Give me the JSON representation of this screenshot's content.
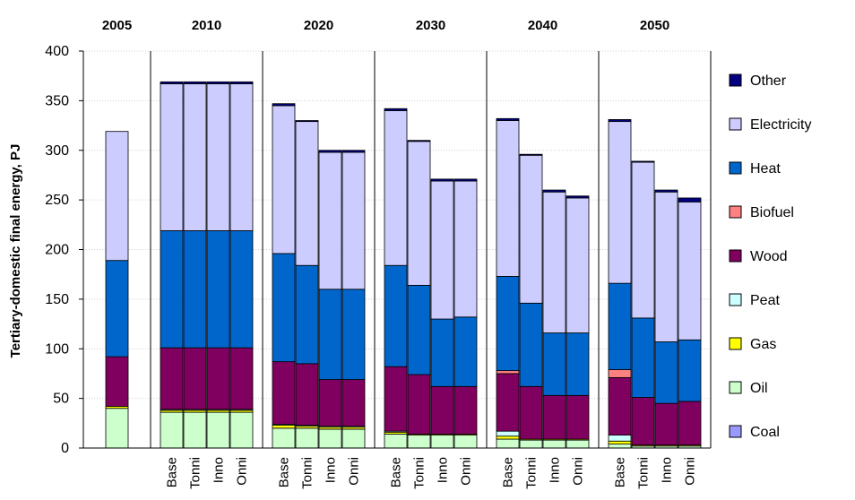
{
  "chart_data": {
    "type": "bar",
    "stacked": true,
    "ylabel": "Tertiary-domestic final energy, PJ",
    "ylim": [
      0,
      400
    ],
    "yticks": [
      0,
      50,
      100,
      150,
      200,
      250,
      300,
      350,
      400
    ],
    "grid": true,
    "legend_position": "right",
    "groups": [
      {
        "label": "2005",
        "bars": [
          ""
        ]
      },
      {
        "label": "2010",
        "bars": [
          "Base",
          "Tonni",
          "Inno",
          "Onni"
        ]
      },
      {
        "label": "2020",
        "bars": [
          "Base",
          "Tonni",
          "Inno",
          "Onni"
        ]
      },
      {
        "label": "2030",
        "bars": [
          "Base",
          "Tonni",
          "Inno",
          "Onni"
        ]
      },
      {
        "label": "2040",
        "bars": [
          "Base",
          "Tonni",
          "Inno",
          "Onni"
        ]
      },
      {
        "label": "2050",
        "bars": [
          "Base",
          "Tonni",
          "Inno",
          "Onni"
        ]
      }
    ],
    "series": [
      {
        "name": "Coal",
        "color": "#9999ff",
        "values": [
          0,
          0,
          0,
          0,
          0,
          0,
          0,
          0,
          0,
          0,
          0,
          0,
          0,
          0,
          0,
          0,
          0,
          0,
          0,
          0,
          0
        ]
      },
      {
        "name": "Oil",
        "color": "#ccffcc",
        "values": [
          40,
          36,
          36,
          36,
          36,
          20,
          20,
          19,
          19,
          14,
          13,
          13,
          13,
          9,
          8,
          8,
          8,
          4,
          2,
          2,
          2
        ]
      },
      {
        "name": "Gas",
        "color": "#ffff00",
        "values": [
          2,
          2,
          2,
          2,
          2,
          3,
          2,
          2,
          2,
          2,
          1,
          1,
          1,
          3,
          1,
          1,
          1,
          3,
          1,
          1,
          1
        ]
      },
      {
        "name": "Peat",
        "color": "#ccffff",
        "values": [
          0,
          1,
          1,
          1,
          1,
          1,
          1,
          1,
          1,
          1,
          0,
          0,
          0,
          5,
          0,
          0,
          0,
          6,
          0,
          0,
          0
        ]
      },
      {
        "name": "Wood",
        "color": "#800060",
        "values": [
          50,
          62,
          62,
          62,
          62,
          63,
          62,
          47,
          47,
          65,
          60,
          48,
          48,
          58,
          53,
          44,
          44,
          58,
          48,
          42,
          44
        ]
      },
      {
        "name": "Biofuel",
        "color": "#ff8080",
        "values": [
          0,
          0,
          0,
          0,
          0,
          0,
          0,
          0,
          0,
          0,
          0,
          0,
          0,
          3,
          0,
          0,
          0,
          8,
          0,
          0,
          0
        ]
      },
      {
        "name": "Heat",
        "color": "#0066cc",
        "values": [
          97,
          118,
          118,
          118,
          118,
          109,
          99,
          91,
          91,
          102,
          90,
          68,
          70,
          95,
          84,
          63,
          63,
          87,
          80,
          62,
          62
        ]
      },
      {
        "name": "Electricity",
        "color": "#ccccff",
        "values": [
          130,
          148,
          148,
          148,
          148,
          149,
          145,
          138,
          138,
          156,
          145,
          139,
          137,
          157,
          149,
          142,
          136,
          163,
          157,
          151,
          139
        ]
      },
      {
        "name": "Other",
        "color": "#000080",
        "values": [
          0,
          2,
          2,
          2,
          2,
          2,
          1,
          2,
          2,
          2,
          1,
          2,
          2,
          2,
          1,
          2,
          2,
          2,
          1,
          2,
          4
        ]
      }
    ]
  }
}
